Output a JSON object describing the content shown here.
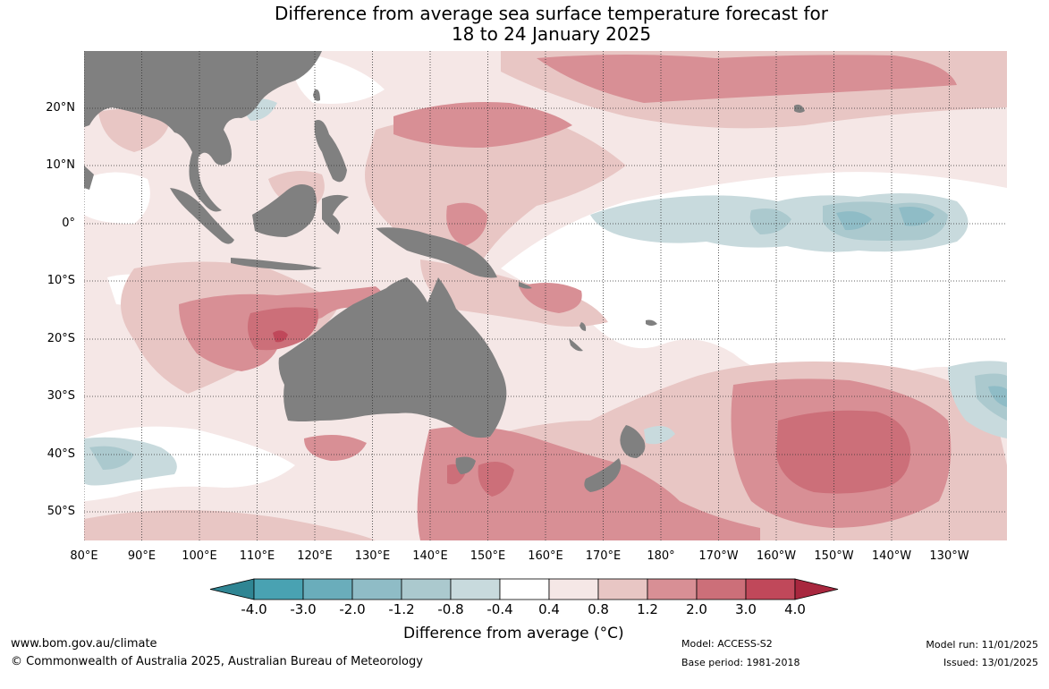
{
  "title_line1": "Difference from average sea surface temperature forecast for",
  "title_line2": "18 to 24 January 2025",
  "lat_labels": [
    "20°N",
    "10°N",
    "0°",
    "10°S",
    "20°S",
    "30°S",
    "40°S",
    "50°S"
  ],
  "lon_labels": [
    "80°E",
    "90°E",
    "100°E",
    "110°E",
    "120°E",
    "130°E",
    "140°E",
    "150°E",
    "160°E",
    "170°E",
    "180°",
    "170°W",
    "160°W",
    "150°W",
    "140°W",
    "130°W"
  ],
  "colorbar": {
    "ticks": [
      "-4.0",
      "-3.0",
      "-2.0",
      "-1.2",
      "-0.8",
      "-0.4",
      "0.4",
      "0.8",
      "1.2",
      "2.0",
      "3.0",
      "4.0"
    ],
    "colors": [
      "#49a2b2",
      "#6aadbb",
      "#8fbcc6",
      "#abc9ce",
      "#c8dadd",
      "#ffffff",
      "#f5e7e6",
      "#e8c6c4",
      "#d88f95",
      "#cc6f79",
      "#c0485a"
    ],
    "under_color": "#2f8593",
    "over_color": "#a8273e",
    "label": "Difference from average (°C)"
  },
  "colors": {
    "land": "#808080",
    "grid": "#333333"
  },
  "footer": {
    "website": "www.bom.gov.au/climate",
    "copyright": "© Commonwealth of Australia 2025, Australian Bureau of Meteorology",
    "model": "Model: ACCESS-S2",
    "base_period": "Base period: 1981-2018",
    "model_run": "Model run: 11/01/2025",
    "issued": "Issued: 13/01/2025"
  }
}
